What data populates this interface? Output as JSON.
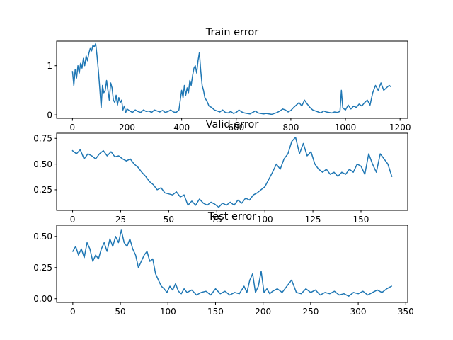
{
  "chart_data": [
    {
      "type": "line",
      "title": "Train error",
      "xlabel": "",
      "ylabel": "",
      "xlim": [
        -58,
        1228
      ],
      "ylim": [
        -0.07,
        1.5
      ],
      "xticks": [
        0,
        200,
        400,
        600,
        800,
        1000,
        1200
      ],
      "xtick_labels": [
        "0",
        "200",
        "400",
        "600",
        "800",
        "1000",
        "1200"
      ],
      "yticks": [
        0,
        1
      ],
      "ytick_labels": [
        "0",
        "1"
      ],
      "grid": false,
      "color": "#1f77b4",
      "series": [
        {
          "x": [
            0,
            5,
            10,
            15,
            20,
            25,
            30,
            35,
            40,
            45,
            50,
            55,
            60,
            65,
            70,
            75,
            80,
            85,
            90,
            95,
            100,
            105,
            110,
            115,
            120,
            125,
            130,
            135,
            140,
            145,
            150,
            155,
            160,
            165,
            170,
            175,
            180,
            185,
            190,
            195,
            200,
            210,
            220,
            230,
            240,
            250,
            260,
            270,
            280,
            290,
            300,
            310,
            320,
            330,
            340,
            350,
            360,
            370,
            380,
            390,
            395,
            400,
            405,
            410,
            415,
            420,
            425,
            430,
            435,
            440,
            445,
            450,
            455,
            460,
            465,
            470,
            475,
            480,
            485,
            490,
            495,
            500,
            510,
            520,
            530,
            540,
            550,
            560,
            570,
            580,
            590,
            600,
            610,
            620,
            630,
            640,
            650,
            660,
            670,
            680,
            690,
            700,
            710,
            720,
            730,
            740,
            750,
            760,
            770,
            780,
            790,
            800,
            810,
            820,
            830,
            840,
            850,
            860,
            870,
            880,
            890,
            900,
            910,
            920,
            930,
            940,
            950,
            960,
            970,
            980,
            985,
            990,
            995,
            1000,
            1010,
            1020,
            1030,
            1040,
            1050,
            1060,
            1070,
            1080,
            1090,
            1100,
            1110,
            1120,
            1130,
            1140,
            1150,
            1160,
            1165
          ],
          "y": [
            0.88,
            0.6,
            0.92,
            0.75,
            1.0,
            0.85,
            1.05,
            0.95,
            1.15,
            1.0,
            1.2,
            1.1,
            1.25,
            1.35,
            1.3,
            1.42,
            1.38,
            1.45,
            1.2,
            0.9,
            0.55,
            0.15,
            0.6,
            0.45,
            0.5,
            0.7,
            0.5,
            0.3,
            0.65,
            0.55,
            0.3,
            0.25,
            0.4,
            0.2,
            0.35,
            0.25,
            0.3,
            0.1,
            0.18,
            0.05,
            0.12,
            0.08,
            0.05,
            0.1,
            0.07,
            0.05,
            0.1,
            0.07,
            0.08,
            0.05,
            0.1,
            0.08,
            0.06,
            0.09,
            0.05,
            0.07,
            0.1,
            0.06,
            0.05,
            0.1,
            0.3,
            0.5,
            0.35,
            0.6,
            0.4,
            0.55,
            0.45,
            0.7,
            0.6,
            0.8,
            0.95,
            1.0,
            0.85,
            1.1,
            1.27,
            0.9,
            0.6,
            0.5,
            0.35,
            0.3,
            0.25,
            0.18,
            0.15,
            0.1,
            0.08,
            0.06,
            0.1,
            0.05,
            0.04,
            0.07,
            0.03,
            0.05,
            0.1,
            0.06,
            0.04,
            0.03,
            0.02,
            0.05,
            0.08,
            0.04,
            0.03,
            0.02,
            0.03,
            0.02,
            0.01,
            0.03,
            0.05,
            0.08,
            0.12,
            0.1,
            0.06,
            0.09,
            0.15,
            0.2,
            0.25,
            0.18,
            0.3,
            0.22,
            0.15,
            0.1,
            0.08,
            0.06,
            0.04,
            0.08,
            0.06,
            0.05,
            0.04,
            0.06,
            0.05,
            0.07,
            0.5,
            0.15,
            0.12,
            0.1,
            0.2,
            0.12,
            0.18,
            0.15,
            0.22,
            0.18,
            0.25,
            0.3,
            0.2,
            0.45,
            0.6,
            0.5,
            0.65,
            0.5,
            0.55,
            0.6,
            0.58
          ]
        }
      ]
    },
    {
      "type": "line",
      "title": "Valid error",
      "xlabel": "",
      "ylabel": "",
      "xlim": [
        -8.3,
        174.3
      ],
      "ylim": [
        0.05,
        0.8
      ],
      "xticks": [
        0,
        25,
        50,
        75,
        100,
        125,
        150
      ],
      "xtick_labels": [
        "0",
        "25",
        "50",
        "75",
        "100",
        "125",
        "150"
      ],
      "yticks": [
        0.25,
        0.5,
        0.75
      ],
      "ytick_labels": [
        "0.25",
        "0.50",
        "0.75"
      ],
      "grid": false,
      "color": "#1f77b4",
      "series": [
        {
          "x": [
            0,
            2,
            4,
            6,
            8,
            10,
            12,
            14,
            16,
            18,
            20,
            22,
            24,
            26,
            28,
            30,
            32,
            34,
            36,
            38,
            40,
            42,
            44,
            46,
            48,
            50,
            52,
            54,
            56,
            58,
            60,
            62,
            64,
            66,
            68,
            70,
            72,
            74,
            76,
            78,
            80,
            82,
            84,
            86,
            88,
            90,
            92,
            94,
            96,
            98,
            100,
            102,
            104,
            106,
            108,
            110,
            112,
            114,
            116,
            118,
            120,
            122,
            124,
            126,
            128,
            130,
            132,
            134,
            136,
            138,
            140,
            142,
            144,
            146,
            148,
            150,
            152,
            154,
            156,
            158,
            160,
            162,
            164,
            166
          ],
          "y": [
            0.63,
            0.6,
            0.64,
            0.55,
            0.6,
            0.58,
            0.55,
            0.6,
            0.63,
            0.58,
            0.62,
            0.57,
            0.58,
            0.55,
            0.53,
            0.55,
            0.5,
            0.47,
            0.42,
            0.38,
            0.33,
            0.3,
            0.25,
            0.27,
            0.22,
            0.21,
            0.2,
            0.23,
            0.18,
            0.2,
            0.1,
            0.14,
            0.1,
            0.16,
            0.12,
            0.1,
            0.13,
            0.11,
            0.08,
            0.12,
            0.1,
            0.13,
            0.1,
            0.15,
            0.12,
            0.17,
            0.15,
            0.2,
            0.22,
            0.25,
            0.28,
            0.35,
            0.42,
            0.5,
            0.45,
            0.55,
            0.6,
            0.72,
            0.76,
            0.6,
            0.7,
            0.58,
            0.62,
            0.5,
            0.45,
            0.42,
            0.45,
            0.4,
            0.42,
            0.38,
            0.42,
            0.4,
            0.45,
            0.42,
            0.5,
            0.48,
            0.4,
            0.6,
            0.5,
            0.42,
            0.6,
            0.55,
            0.5,
            0.38
          ]
        }
      ]
    },
    {
      "type": "line",
      "title": "Test error",
      "xlabel": "",
      "ylabel": "",
      "xlim": [
        -17,
        352
      ],
      "ylim": [
        -0.03,
        0.59
      ],
      "xticks": [
        0,
        50,
        100,
        150,
        200,
        250,
        300,
        350
      ],
      "xtick_labels": [
        "0",
        "50",
        "100",
        "150",
        "200",
        "250",
        "300",
        "350"
      ],
      "yticks": [
        0,
        0.25,
        0.5
      ],
      "ytick_labels": [
        "0.00",
        "0.25",
        "0.50"
      ],
      "grid": false,
      "color": "#1f77b4",
      "series": [
        {
          "x": [
            0,
            3,
            6,
            9,
            12,
            15,
            18,
            21,
            24,
            27,
            30,
            33,
            36,
            39,
            42,
            45,
            48,
            51,
            54,
            57,
            60,
            63,
            66,
            69,
            72,
            75,
            78,
            81,
            84,
            87,
            90,
            93,
            96,
            99,
            102,
            105,
            108,
            111,
            114,
            117,
            120,
            125,
            130,
            135,
            140,
            145,
            150,
            155,
            160,
            165,
            170,
            175,
            180,
            183,
            186,
            189,
            192,
            195,
            198,
            201,
            204,
            207,
            210,
            215,
            220,
            225,
            230,
            235,
            240,
            245,
            250,
            255,
            260,
            265,
            270,
            275,
            280,
            285,
            290,
            295,
            300,
            305,
            310,
            315,
            320,
            325,
            330,
            335
          ],
          "y": [
            0.38,
            0.42,
            0.35,
            0.4,
            0.33,
            0.45,
            0.4,
            0.3,
            0.35,
            0.32,
            0.4,
            0.45,
            0.38,
            0.48,
            0.42,
            0.5,
            0.45,
            0.55,
            0.45,
            0.42,
            0.48,
            0.4,
            0.35,
            0.25,
            0.3,
            0.35,
            0.38,
            0.3,
            0.32,
            0.2,
            0.15,
            0.1,
            0.08,
            0.05,
            0.1,
            0.07,
            0.12,
            0.06,
            0.04,
            0.08,
            0.05,
            0.07,
            0.03,
            0.05,
            0.06,
            0.03,
            0.08,
            0.04,
            0.06,
            0.03,
            0.05,
            0.04,
            0.1,
            0.05,
            0.15,
            0.2,
            0.05,
            0.1,
            0.22,
            0.05,
            0.08,
            0.04,
            0.06,
            0.08,
            0.05,
            0.1,
            0.15,
            0.05,
            0.04,
            0.08,
            0.05,
            0.07,
            0.03,
            0.05,
            0.04,
            0.06,
            0.03,
            0.04,
            0.02,
            0.05,
            0.04,
            0.06,
            0.03,
            0.05,
            0.07,
            0.05,
            0.08,
            0.1
          ]
        }
      ]
    }
  ]
}
